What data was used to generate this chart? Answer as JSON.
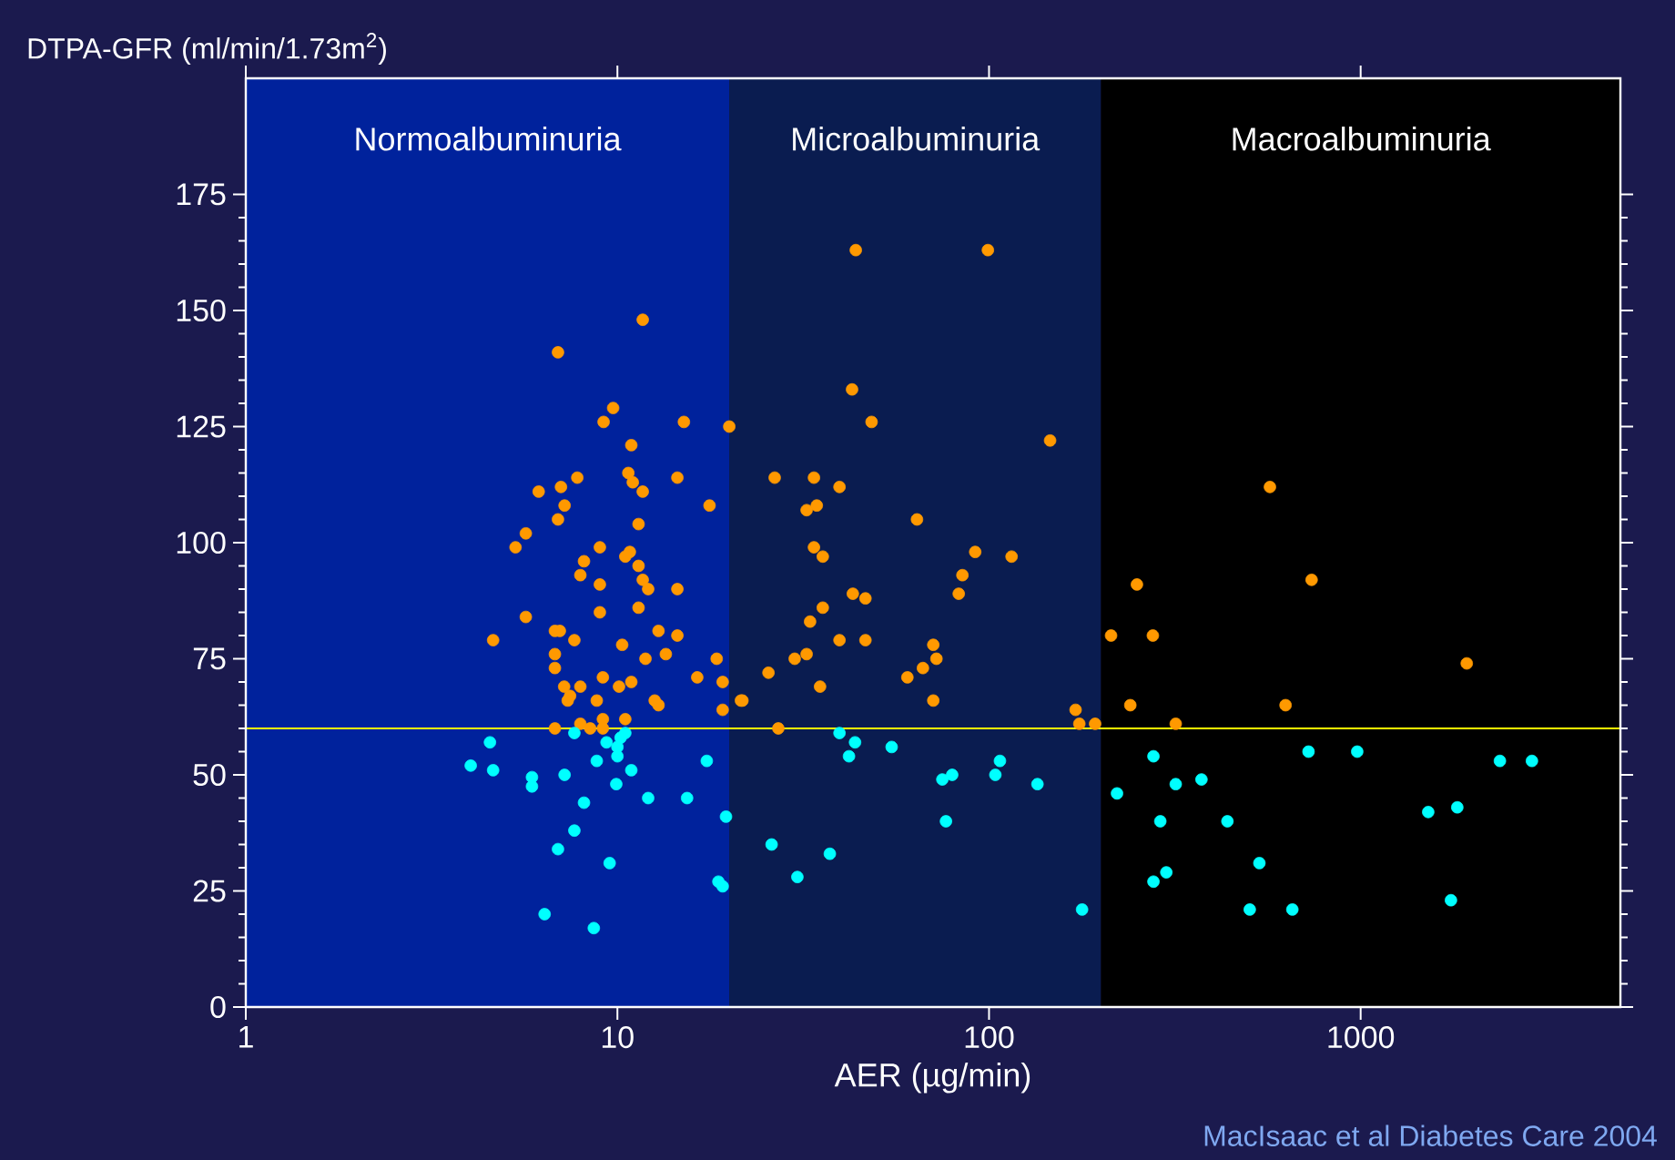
{
  "chart_data": {
    "type": "scatter",
    "ylabel": "DTPA-GFR (ml/min/1.73m$^{2}$)",
    "xlabel": "AER (µg/min)",
    "log": "x",
    "xlim": [
      1,
      5000
    ],
    "xticks": [
      1,
      10,
      100,
      1000
    ],
    "ylim": [
      0,
      200
    ],
    "yticks": [
      0,
      25,
      50,
      75,
      100,
      125,
      150,
      175
    ],
    "marker": "circle",
    "bands": [
      {
        "axis": "x",
        "from": 1,
        "to": 20,
        "label": "Normoalbuminuria",
        "color": "#00229c"
      },
      {
        "axis": "x",
        "from": 20,
        "to": 200,
        "label": "Microalbuminuria",
        "color": "#0a1c50"
      },
      {
        "axis": "x",
        "from": 200,
        "to": 5000,
        "label": "Macroalbuminuria",
        "color": "#000000"
      }
    ],
    "ref_lines": [
      {
        "axis": "y",
        "value": 60,
        "color": "#ffff00"
      }
    ],
    "annotations": [
      "MacIsaac et al Diabetes Care 2004"
    ],
    "series": [
      {
        "color": "#ff9900",
        "x": [
          11.7,
          6.92,
          9.74,
          9.18,
          15.1,
          20.0,
          10.9,
          10.7,
          11.0,
          14.5,
          7.8,
          7.05,
          6.14,
          11.7,
          7.21,
          6.92,
          17.7,
          11.4,
          5.67,
          5.32,
          8.97,
          10.8,
          10.5,
          8.13,
          11.4,
          7.95,
          11.7,
          12.1,
          8.97,
          14.5,
          11.4,
          8.97,
          5.67,
          6.79,
          7.0,
          12.9,
          14.5,
          4.63,
          7.66,
          10.3,
          6.79,
          13.5,
          18.5,
          11.9,
          6.79,
          16.4,
          9.14,
          19.2,
          7.19,
          7.95,
          10.1,
          10.9,
          7.46,
          7.35,
          8.8,
          12.6,
          12.9,
          21.5,
          19.2,
          6.79,
          7.95,
          8.45,
          9.14,
          9.14,
          10.5,
          43.8,
          99.3,
          42.8,
          48.3,
          146,
          26.5,
          33.8,
          39.6,
          32.3,
          34.4,
          64,
          33.8,
          35.7,
          91.8,
          115,
          84.8,
          82.9,
          43,
          46.5,
          35.7,
          33,
          39.6,
          46.5,
          30,
          32.3,
          70.8,
          72.2,
          66.4,
          25.5,
          21.7,
          35.1,
          60.3,
          70.8,
          27.1,
          171,
          175,
          193,
          570,
          250,
          738,
          213,
          276,
          1930,
          240,
          628,
          318
        ],
        "values": [
          148,
          141,
          129,
          126,
          126,
          125,
          121,
          115,
          113,
          114,
          114,
          112,
          111,
          111,
          108,
          105,
          108,
          104,
          102,
          99,
          99,
          98,
          97,
          96,
          95,
          93,
          92,
          90,
          91,
          90,
          86,
          85,
          84,
          81,
          81,
          81,
          80,
          79,
          79,
          78,
          76,
          76,
          75,
          75,
          73,
          71,
          71,
          70,
          69,
          69,
          69,
          70,
          67,
          66,
          66,
          66,
          65,
          66,
          64,
          60,
          61,
          60,
          62,
          60,
          62,
          163,
          163,
          133,
          126,
          122,
          114,
          114,
          112,
          107,
          108,
          105,
          99,
          97,
          98,
          97,
          93,
          89,
          89,
          88,
          86,
          83,
          79,
          79,
          75,
          76,
          78,
          75,
          73,
          72,
          66,
          69,
          71,
          66,
          60,
          64,
          61,
          61,
          112,
          91,
          92,
          80,
          80,
          74,
          65,
          65,
          61
        ]
      },
      {
        "color": "#00ffff",
        "x": [
          4.54,
          4.03,
          4.63,
          5.89,
          5.89,
          7.21,
          7.66,
          9.35,
          10.5,
          10.2,
          10.0,
          10.0,
          8.8,
          10.9,
          9.93,
          8.13,
          12.1,
          15.4,
          17.4,
          19.6,
          7.66,
          6.92,
          9.53,
          18.7,
          19.2,
          6.37,
          8.64,
          39.6,
          43.6,
          42,
          54.7,
          74.9,
          79.6,
          104,
          107,
          135,
          76.6,
          26,
          37.3,
          30.5,
          178,
          277,
          724,
          979,
          2370,
          2890,
          221,
          318,
          373,
          289,
          438,
          1520,
          1820,
          534,
          300,
          277,
          1750,
          503,
          655
        ],
        "values": [
          57,
          52,
          51,
          49.5,
          47.5,
          50,
          59,
          57,
          59,
          58,
          56,
          54,
          53,
          51,
          48,
          44,
          45,
          45,
          53,
          41,
          38,
          34,
          31,
          27,
          26,
          20,
          17,
          59,
          57,
          54,
          56,
          49,
          50,
          50,
          53,
          48,
          40,
          35,
          33,
          28,
          21,
          54,
          55,
          55,
          53,
          53,
          46,
          48,
          49,
          40,
          40,
          42,
          43,
          31,
          29,
          27,
          23,
          21,
          21
        ]
      }
    ]
  }
}
